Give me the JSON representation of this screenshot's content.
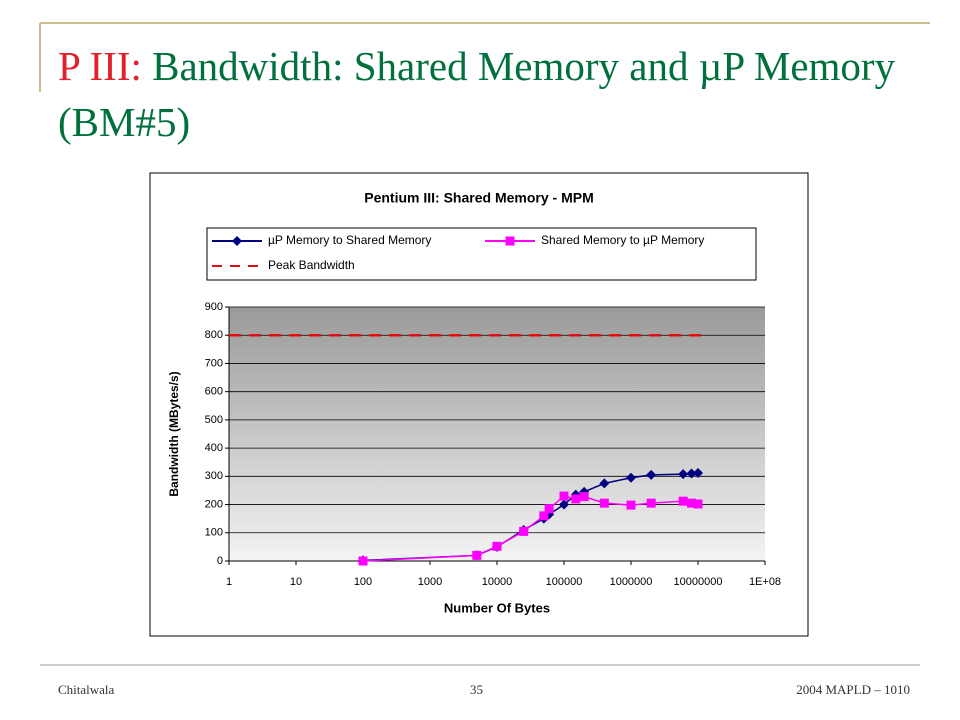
{
  "slide": {
    "title_prefix": "P III:",
    "title": "Bandwidth: Shared Memory and µP Memory (BM#5)",
    "footer_left": "Chitalwala",
    "footer_center": "35",
    "footer_right": "2004 MAPLD – 1010"
  },
  "chart_data": {
    "type": "line",
    "title": "Pentium III: Shared Memory - MPM",
    "x_label": "Number Of Bytes",
    "y_label": "Bandwidth (MBytes/s)",
    "xscale": "log",
    "xlim": [
      1,
      100000000
    ],
    "xticks": [
      1,
      10,
      100,
      1000,
      10000,
      100000,
      1000000,
      10000000,
      {
        "value": 100000000,
        "label": "1E+08"
      }
    ],
    "ylim": [
      0,
      900
    ],
    "yticks": [
      0,
      100,
      200,
      300,
      400,
      500,
      600,
      700,
      800,
      900
    ],
    "grid": true,
    "series": [
      {
        "name": "µP Memory to Shared Memory",
        "color": "#000080",
        "marker": "diamond",
        "style": "solid",
        "x": [
          100,
          5000,
          10000,
          25000,
          50000,
          60000,
          100000,
          150000,
          200000,
          400000,
          1000000,
          2000000,
          6000000,
          8000000,
          10000000
        ],
        "values": [
          2,
          20,
          50,
          110,
          150,
          165,
          200,
          235,
          245,
          275,
          295,
          305,
          308,
          310,
          312
        ]
      },
      {
        "name": "Shared Memory to µP Memory",
        "color": "#ff00ff",
        "marker": "square",
        "style": "solid",
        "x": [
          100,
          5000,
          10000,
          25000,
          50000,
          60000,
          100000,
          150000,
          200000,
          400000,
          1000000,
          2000000,
          6000000,
          8000000,
          10000000
        ],
        "values": [
          0,
          20,
          52,
          105,
          160,
          185,
          230,
          220,
          228,
          205,
          198,
          205,
          212,
          205,
          202
        ]
      },
      {
        "name": "Peak Bandwidth",
        "color": "#e01010",
        "marker": "none",
        "style": "dash",
        "x": [
          1,
          12000000
        ],
        "values": [
          800,
          800
        ]
      }
    ]
  }
}
